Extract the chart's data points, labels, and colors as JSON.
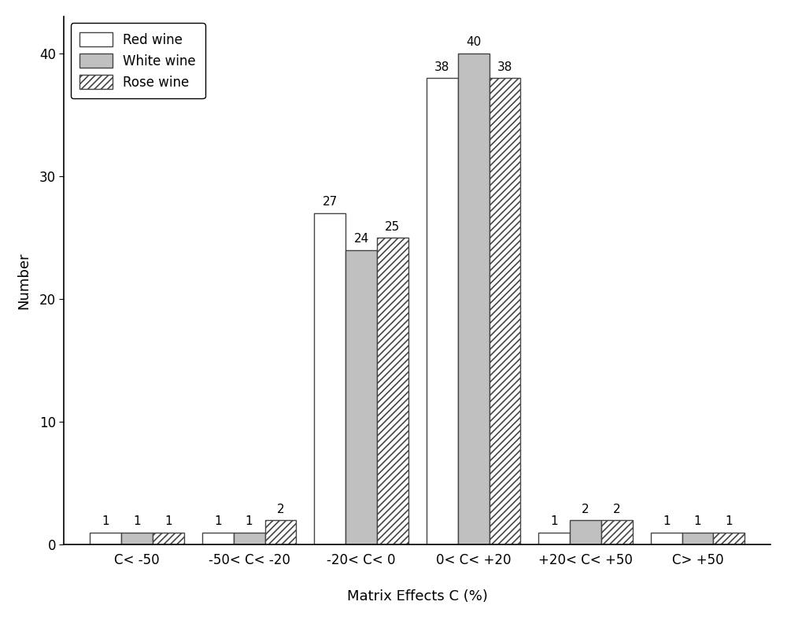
{
  "categories": [
    "C< -50",
    "-50< C< -20",
    "-20< C< 0",
    "0< C< +20",
    "+20< C< +50",
    "C> +50"
  ],
  "red_wine": [
    1,
    1,
    27,
    38,
    1,
    1
  ],
  "white_wine": [
    1,
    1,
    24,
    40,
    2,
    1
  ],
  "rose_wine": [
    1,
    2,
    25,
    38,
    2,
    1
  ],
  "ylabel": "Number",
  "xlabel": "Matrix Effects C (%)",
  "ylim": [
    0,
    43
  ],
  "yticks": [
    0,
    10,
    20,
    30,
    40
  ],
  "legend_labels": [
    "Red wine",
    "White wine",
    "Rose wine"
  ],
  "bar_width": 0.28,
  "red_wine_color": "#ffffff",
  "white_wine_color": "#c0c0c0",
  "rose_wine_color": "#ffffff",
  "rose_hatch": "////",
  "white_hatch": "",
  "red_hatch": "",
  "bar_edge_color": "#444444",
  "annotation_fontsize": 11,
  "axis_fontsize": 13,
  "legend_fontsize": 12,
  "tick_fontsize": 12,
  "bar_lw": 1.0
}
